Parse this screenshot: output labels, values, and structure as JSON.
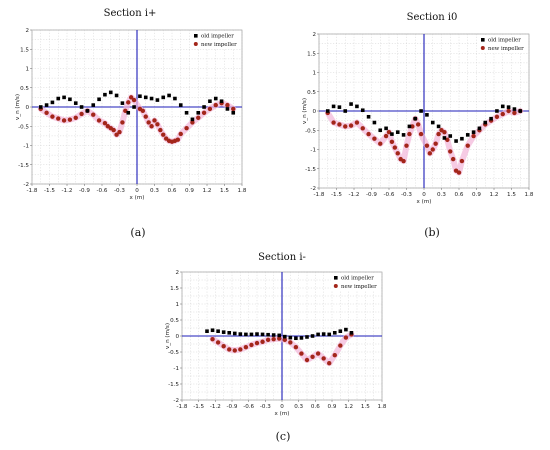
{
  "panel_labels": [
    "(a)",
    "(b)",
    "(c)"
  ],
  "colors": {
    "old": "#000000",
    "new": "#a3261a",
    "axis": "#1d1db8",
    "grid": "#c8c8c8",
    "halo": "#f2b5d8"
  },
  "chart_data": [
    {
      "type": "scatter",
      "title": "Section i+",
      "xlabel": "x (m)",
      "ylabel": "v_n (m/s)",
      "xlim": [
        -1.8,
        1.8
      ],
      "ylim": [
        -2,
        2
      ],
      "xticks": [
        "-1.8",
        "-1.5",
        "-1.2",
        "-0.9",
        "-0.6",
        "-0.3",
        "0",
        "0.3",
        "0.6",
        "0.9",
        "1.2",
        "1.5",
        "1.8"
      ],
      "yticks": [
        "2",
        "1.5",
        "1",
        "0.5",
        "0",
        "-0.5",
        "-1",
        "-1.5",
        "-2"
      ],
      "grid": true,
      "legend_position": "top-right",
      "series": [
        {
          "name": "old impeller",
          "marker": "square",
          "x": [
            -1.65,
            -1.55,
            -1.45,
            -1.35,
            -1.25,
            -1.15,
            -1.05,
            -0.95,
            -0.85,
            -0.75,
            -0.65,
            -0.55,
            -0.45,
            -0.35,
            -0.25,
            -0.15,
            -0.05,
            0.05,
            0.15,
            0.25,
            0.35,
            0.45,
            0.55,
            0.65,
            0.75,
            0.85,
            0.95,
            1.05,
            1.15,
            1.25,
            1.35,
            1.45,
            1.55,
            1.65
          ],
          "y": [
            0.0,
            0.05,
            0.12,
            0.22,
            0.25,
            0.2,
            0.1,
            0.0,
            -0.1,
            0.05,
            0.2,
            0.32,
            0.38,
            0.3,
            0.1,
            -0.15,
            0.0,
            0.28,
            0.25,
            0.22,
            0.18,
            0.25,
            0.3,
            0.22,
            0.05,
            -0.15,
            -0.32,
            -0.15,
            0.0,
            0.15,
            0.22,
            0.15,
            -0.05,
            -0.15
          ]
        },
        {
          "name": "new impeller",
          "marker": "circle",
          "x": [
            -1.65,
            -1.55,
            -1.45,
            -1.35,
            -1.25,
            -1.15,
            -1.05,
            -0.95,
            -0.85,
            -0.75,
            -0.65,
            -0.55,
            -0.5,
            -0.45,
            -0.4,
            -0.35,
            -0.3,
            -0.25,
            -0.2,
            -0.15,
            -0.1,
            -0.05,
            0.05,
            0.1,
            0.15,
            0.2,
            0.25,
            0.3,
            0.35,
            0.4,
            0.45,
            0.5,
            0.55,
            0.6,
            0.65,
            0.7,
            0.75,
            0.85,
            0.95,
            1.05,
            1.15,
            1.25,
            1.35,
            1.45,
            1.55,
            1.65
          ],
          "y": [
            -0.05,
            -0.15,
            -0.25,
            -0.3,
            -0.35,
            -0.33,
            -0.28,
            -0.18,
            -0.1,
            -0.2,
            -0.35,
            -0.42,
            -0.5,
            -0.55,
            -0.6,
            -0.72,
            -0.65,
            -0.4,
            -0.1,
            0.12,
            0.25,
            0.18,
            -0.05,
            -0.1,
            -0.25,
            -0.4,
            -0.5,
            -0.35,
            -0.45,
            -0.6,
            -0.72,
            -0.82,
            -0.88,
            -0.9,
            -0.88,
            -0.85,
            -0.7,
            -0.55,
            -0.4,
            -0.28,
            -0.15,
            -0.05,
            0.05,
            0.1,
            0.05,
            -0.05
          ]
        }
      ]
    },
    {
      "type": "scatter",
      "title": "Section i0",
      "xlabel": "x (m)",
      "ylabel": "v_n (m/s)",
      "xlim": [
        -1.8,
        1.8
      ],
      "ylim": [
        -2,
        2
      ],
      "xticks": [
        "-1.8",
        "-1.5",
        "-1.2",
        "-0.9",
        "-0.6",
        "-0.3",
        "0",
        "0.3",
        "0.6",
        "0.9",
        "1.2",
        "1.5",
        "1.8"
      ],
      "yticks": [
        "2",
        "1.5",
        "1",
        "0.5",
        "0",
        "-0.5",
        "-1",
        "-1.5",
        "-2"
      ],
      "grid": true,
      "legend_position": "top-right",
      "series": [
        {
          "name": "old impeller",
          "marker": "square",
          "x": [
            -1.65,
            -1.55,
            -1.45,
            -1.35,
            -1.25,
            -1.15,
            -1.05,
            -0.95,
            -0.85,
            -0.75,
            -0.65,
            -0.55,
            -0.45,
            -0.35,
            -0.25,
            -0.15,
            -0.05,
            0.05,
            0.15,
            0.25,
            0.35,
            0.45,
            0.55,
            0.65,
            0.75,
            0.85,
            0.95,
            1.05,
            1.15,
            1.25,
            1.35,
            1.45,
            1.55,
            1.65
          ],
          "y": [
            0.0,
            0.12,
            0.1,
            0.0,
            0.18,
            0.12,
            0.02,
            -0.15,
            -0.3,
            -0.5,
            -0.45,
            -0.6,
            -0.55,
            -0.62,
            -0.4,
            -0.2,
            0.0,
            -0.1,
            -0.3,
            -0.4,
            -0.7,
            -0.65,
            -0.78,
            -0.72,
            -0.62,
            -0.55,
            -0.45,
            -0.3,
            -0.2,
            0.0,
            0.12,
            0.1,
            0.05,
            0.0
          ]
        },
        {
          "name": "new impeller",
          "marker": "circle",
          "x": [
            -1.65,
            -1.55,
            -1.45,
            -1.35,
            -1.25,
            -1.15,
            -1.05,
            -0.95,
            -0.85,
            -0.75,
            -0.65,
            -0.6,
            -0.55,
            -0.5,
            -0.45,
            -0.4,
            -0.35,
            -0.3,
            -0.25,
            -0.2,
            -0.15,
            -0.1,
            -0.05,
            0.05,
            0.1,
            0.15,
            0.2,
            0.25,
            0.3,
            0.35,
            0.4,
            0.45,
            0.5,
            0.55,
            0.6,
            0.65,
            0.75,
            0.85,
            0.95,
            1.05,
            1.15,
            1.25,
            1.35,
            1.45,
            1.55,
            1.65
          ],
          "y": [
            -0.05,
            -0.3,
            -0.35,
            -0.4,
            -0.38,
            -0.3,
            -0.45,
            -0.6,
            -0.72,
            -0.85,
            -0.65,
            -0.55,
            -0.8,
            -0.95,
            -1.1,
            -1.25,
            -1.3,
            -0.9,
            -0.6,
            -0.4,
            -0.2,
            -0.35,
            -0.6,
            -0.9,
            -1.1,
            -1.0,
            -0.85,
            -0.6,
            -0.5,
            -0.55,
            -0.75,
            -1.05,
            -1.25,
            -1.55,
            -1.6,
            -1.3,
            -0.9,
            -0.65,
            -0.5,
            -0.35,
            -0.25,
            -0.15,
            -0.08,
            0.0,
            -0.05,
            0.0
          ]
        }
      ]
    },
    {
      "type": "scatter",
      "title": "Section i-",
      "xlabel": "x (m)",
      "ylabel": "v_n (m/s)",
      "xlim": [
        -1.8,
        1.8
      ],
      "ylim": [
        -2,
        2
      ],
      "xticks": [
        "-1.8",
        "-1.5",
        "-1.2",
        "-0.9",
        "-0.6",
        "-0.3",
        "0",
        "0.3",
        "0.6",
        "0.9",
        "1.2",
        "1.5",
        "1.8"
      ],
      "yticks": [
        "2",
        "1.5",
        "1",
        "0.5",
        "0",
        "-0.5",
        "-1",
        "-1.5",
        "-2"
      ],
      "grid": true,
      "legend_position": "top-right",
      "series": [
        {
          "name": "old impeller",
          "marker": "square",
          "x": [
            -1.35,
            -1.25,
            -1.15,
            -1.05,
            -0.95,
            -0.85,
            -0.75,
            -0.65,
            -0.55,
            -0.45,
            -0.35,
            -0.25,
            -0.15,
            -0.05,
            0.05,
            0.15,
            0.25,
            0.35,
            0.45,
            0.55,
            0.65,
            0.75,
            0.85,
            0.95,
            1.05,
            1.15,
            1.25
          ],
          "y": [
            0.15,
            0.18,
            0.15,
            0.12,
            0.1,
            0.08,
            0.06,
            0.05,
            0.05,
            0.06,
            0.05,
            0.04,
            0.03,
            0.02,
            -0.02,
            -0.05,
            -0.07,
            -0.06,
            -0.03,
            0.0,
            0.05,
            0.06,
            0.05,
            0.1,
            0.15,
            0.2,
            0.1
          ]
        },
        {
          "name": "new impeller",
          "marker": "circle",
          "x": [
            -1.25,
            -1.15,
            -1.05,
            -0.95,
            -0.85,
            -0.75,
            -0.65,
            -0.55,
            -0.45,
            -0.35,
            -0.25,
            -0.15,
            -0.05,
            0.05,
            0.15,
            0.25,
            0.35,
            0.45,
            0.55,
            0.65,
            0.75,
            0.85,
            0.95,
            1.05,
            1.15,
            1.25
          ],
          "y": [
            -0.1,
            -0.2,
            -0.32,
            -0.42,
            -0.45,
            -0.42,
            -0.35,
            -0.28,
            -0.22,
            -0.18,
            -0.12,
            -0.1,
            -0.08,
            -0.12,
            -0.2,
            -0.35,
            -0.55,
            -0.75,
            -0.65,
            -0.55,
            -0.7,
            -0.85,
            -0.6,
            -0.3,
            -0.05,
            0.05
          ]
        }
      ]
    }
  ]
}
